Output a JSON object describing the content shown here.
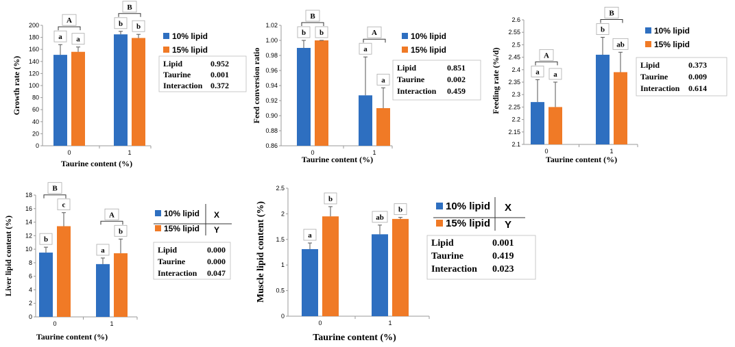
{
  "colors": {
    "lipid10": "#2e6fc0",
    "lipid15": "#f07a26",
    "axis": "#999999"
  },
  "chart_data": [
    {
      "type": "bar",
      "title": "",
      "xlabel": "Taurine content (%)",
      "ylabel": "Growth rate (%)",
      "categories": [
        "0",
        "1"
      ],
      "ylim": [
        0,
        200
      ],
      "yticks": [
        "0",
        "20",
        "40",
        "60",
        "80",
        "100",
        "120",
        "140",
        "160",
        "180",
        "200"
      ],
      "series": [
        {
          "name": "10% lipid",
          "values": [
            151,
            185
          ],
          "errors": [
            17,
            5
          ],
          "letters": [
            "a",
            "b"
          ]
        },
        {
          "name": "15% lipid",
          "values": [
            156,
            179
          ],
          "errors": [
            8,
            6
          ],
          "letters": [
            "a",
            "b"
          ]
        }
      ],
      "group_letters": [
        "A",
        "B"
      ],
      "legend": [
        "10% lipid",
        "15% lipid"
      ],
      "stats": [
        {
          "label": "Lipid",
          "value": "0.952"
        },
        {
          "label": "Taurine",
          "value": "0.001"
        },
        {
          "label": "Interaction",
          "value": "0.372"
        }
      ]
    },
    {
      "type": "bar",
      "title": "",
      "xlabel": "Taurine content (%)",
      "ylabel": "Feed conversion ratio",
      "categories": [
        "0",
        "1"
      ],
      "ylim": [
        0.86,
        1.02
      ],
      "yticks": [
        "0.86",
        "0.88",
        "0.90",
        "0.92",
        "0.94",
        "0.96",
        "0.98",
        "1.00",
        "1.02"
      ],
      "series": [
        {
          "name": "10% lipid",
          "values": [
            0.99,
            0.927
          ],
          "errors": [
            0.01,
            0.051
          ],
          "letters": [
            "b",
            "a"
          ]
        },
        {
          "name": "15% lipid",
          "values": [
            1.0,
            0.91
          ],
          "errors": [
            0.0,
            0.027
          ],
          "letters": [
            "b",
            "a"
          ]
        }
      ],
      "group_letters": [
        "B",
        "A"
      ],
      "legend": [
        "10% lipid",
        "15% lipid"
      ],
      "stats": [
        {
          "label": "Lipid",
          "value": "0.851"
        },
        {
          "label": "Taurine",
          "value": "0.002"
        },
        {
          "label": "Interaction",
          "value": "0.459"
        }
      ]
    },
    {
      "type": "bar",
      "title": "",
      "xlabel": "Taurine content (%)",
      "ylabel": "Feeding rate (%/d)",
      "categories": [
        "0",
        "1"
      ],
      "ylim": [
        2.1,
        2.6
      ],
      "yticks": [
        "2.1",
        "2.15",
        "2.2",
        "2.25",
        "2.3",
        "2.35",
        "2.4",
        "2.45",
        "2.5",
        "2.55",
        "2.6"
      ],
      "series": [
        {
          "name": "10% lipid",
          "values": [
            2.27,
            2.46
          ],
          "errors": [
            0.09,
            0.07
          ],
          "letters": [
            "a",
            "b"
          ]
        },
        {
          "name": "15% lipid",
          "values": [
            2.25,
            2.39
          ],
          "errors": [
            0.1,
            0.08
          ],
          "letters": [
            "a",
            "ab"
          ]
        }
      ],
      "group_letters": [
        "A",
        "B"
      ],
      "legend": [
        "10% lipid",
        "15% lipid"
      ],
      "stats": [
        {
          "label": "Lipid",
          "value": "0.373"
        },
        {
          "label": "Taurine",
          "value": "0.009"
        },
        {
          "label": "Interaction",
          "value": "0.614"
        }
      ]
    },
    {
      "type": "bar",
      "title": "",
      "xlabel": "Taurine content (%)",
      "ylabel": "Liver lipid content (%)",
      "categories": [
        "0",
        "1"
      ],
      "ylim": [
        0,
        18
      ],
      "yticks": [
        "0",
        "2",
        "4",
        "6",
        "8",
        "10",
        "12",
        "14",
        "16",
        "18"
      ],
      "series": [
        {
          "name": "10% lipid",
          "values": [
            9.5,
            7.8
          ],
          "errors": [
            0.8,
            0.9
          ],
          "letters": [
            "b",
            "a"
          ]
        },
        {
          "name": "15% lipid",
          "values": [
            13.4,
            9.4
          ],
          "errors": [
            2.0,
            2.1
          ],
          "letters": [
            "c",
            "b"
          ]
        }
      ],
      "group_letters": [
        "B",
        "A"
      ],
      "legend": [
        "10% lipid",
        "15% lipid"
      ],
      "legend_marks": [
        "X",
        "Y"
      ],
      "stats": [
        {
          "label": "Lipid",
          "value": "0.000"
        },
        {
          "label": "Taurine",
          "value": "0.000"
        },
        {
          "label": "Interaction",
          "value": "0.047"
        }
      ]
    },
    {
      "type": "bar",
      "title": "",
      "xlabel": "Taurine content (%)",
      "ylabel": "Muscle lipid content (%)",
      "categories": [
        "0",
        "1"
      ],
      "ylim": [
        0,
        2.5
      ],
      "yticks": [
        "0",
        "0.5",
        "1",
        "1.5",
        "2",
        "2.5"
      ],
      "series": [
        {
          "name": "10% lipid",
          "values": [
            1.31,
            1.6
          ],
          "errors": [
            0.12,
            0.18
          ],
          "letters": [
            "a",
            "ab"
          ]
        },
        {
          "name": "15% lipid",
          "values": [
            1.95,
            1.9
          ],
          "errors": [
            0.19,
            0.03
          ],
          "letters": [
            "b",
            "b"
          ]
        }
      ],
      "group_letters": [],
      "legend": [
        "10% lipid",
        "15% lipid"
      ],
      "legend_marks": [
        "X",
        "Y"
      ],
      "stats": [
        {
          "label": "Lipid",
          "value": "0.001"
        },
        {
          "label": "Taurine",
          "value": "0.419"
        },
        {
          "label": "Interaction",
          "value": "0.023"
        }
      ]
    }
  ]
}
